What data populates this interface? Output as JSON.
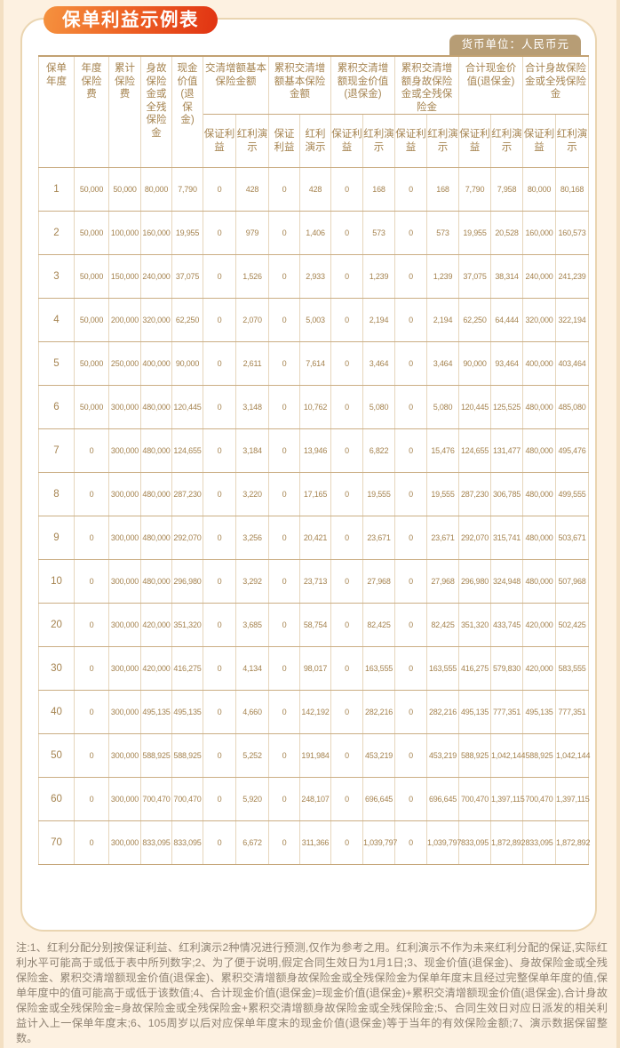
{
  "page": {
    "title": "保单利益示例表",
    "currency_note": "货币单位：人民币元"
  },
  "colors": {
    "page_background": "#fdf1e1",
    "panel_border": "#ead5b1",
    "title_badge_gradient_start": "#f5923f",
    "title_badge_gradient_end": "#e13312",
    "currency_badge_background": "#b79d75",
    "table_text": "#a5834f",
    "table_line_horizontal": "#c9ab80",
    "table_line_vertical": "#e6d6bc",
    "footnote_text": "#8f8374"
  },
  "table": {
    "single_columns": [
      "保单年度",
      "年度保险费",
      "累计保险费",
      "身故保险金或全残保险金",
      "现金价值(退保金)"
    ],
    "group_columns": [
      "交清增额基本保险金额",
      "累积交清增额基本保险金额",
      "累积交清增额现金价值(退保金)",
      "累积交清增额身故保险金或全残保险金",
      "合计现金价值(退保金)",
      "合计身故保险金或全残保险金"
    ],
    "sub_columns": {
      "guaranteed": "保证利益",
      "dividend": "红利演示"
    },
    "rows": [
      [
        "1",
        "50,000",
        "50,000",
        "80,000",
        "7,790",
        "0",
        "428",
        "0",
        "428",
        "0",
        "168",
        "0",
        "168",
        "7,790",
        "7,958",
        "80,000",
        "80,168"
      ],
      [
        "2",
        "50,000",
        "100,000",
        "160,000",
        "19,955",
        "0",
        "979",
        "0",
        "1,406",
        "0",
        "573",
        "0",
        "573",
        "19,955",
        "20,528",
        "160,000",
        "160,573"
      ],
      [
        "3",
        "50,000",
        "150,000",
        "240,000",
        "37,075",
        "0",
        "1,526",
        "0",
        "2,933",
        "0",
        "1,239",
        "0",
        "1,239",
        "37,075",
        "38,314",
        "240,000",
        "241,239"
      ],
      [
        "4",
        "50,000",
        "200,000",
        "320,000",
        "62,250",
        "0",
        "2,070",
        "0",
        "5,003",
        "0",
        "2,194",
        "0",
        "2,194",
        "62,250",
        "64,444",
        "320,000",
        "322,194"
      ],
      [
        "5",
        "50,000",
        "250,000",
        "400,000",
        "90,000",
        "0",
        "2,611",
        "0",
        "7,614",
        "0",
        "3,464",
        "0",
        "3,464",
        "90,000",
        "93,464",
        "400,000",
        "403,464"
      ],
      [
        "6",
        "50,000",
        "300,000",
        "480,000",
        "120,445",
        "0",
        "3,148",
        "0",
        "10,762",
        "0",
        "5,080",
        "0",
        "5,080",
        "120,445",
        "125,525",
        "480,000",
        "485,080"
      ],
      [
        "7",
        "0",
        "300,000",
        "480,000",
        "124,655",
        "0",
        "3,184",
        "0",
        "13,946",
        "0",
        "6,822",
        "0",
        "15,476",
        "124,655",
        "131,477",
        "480,000",
        "495,476"
      ],
      [
        "8",
        "0",
        "300,000",
        "480,000",
        "287,230",
        "0",
        "3,220",
        "0",
        "17,165",
        "0",
        "19,555",
        "0",
        "19,555",
        "287,230",
        "306,785",
        "480,000",
        "499,555"
      ],
      [
        "9",
        "0",
        "300,000",
        "480,000",
        "292,070",
        "0",
        "3,256",
        "0",
        "20,421",
        "0",
        "23,671",
        "0",
        "23,671",
        "292,070",
        "315,741",
        "480,000",
        "503,671"
      ],
      [
        "10",
        "0",
        "300,000",
        "480,000",
        "296,980",
        "0",
        "3,292",
        "0",
        "23,713",
        "0",
        "27,968",
        "0",
        "27,968",
        "296,980",
        "324,948",
        "480,000",
        "507,968"
      ],
      [
        "20",
        "0",
        "300,000",
        "420,000",
        "351,320",
        "0",
        "3,685",
        "0",
        "58,754",
        "0",
        "82,425",
        "0",
        "82,425",
        "351,320",
        "433,745",
        "420,000",
        "502,425"
      ],
      [
        "30",
        "0",
        "300,000",
        "420,000",
        "416,275",
        "0",
        "4,134",
        "0",
        "98,017",
        "0",
        "163,555",
        "0",
        "163,555",
        "416,275",
        "579,830",
        "420,000",
        "583,555"
      ],
      [
        "40",
        "0",
        "300,000",
        "495,135",
        "495,135",
        "0",
        "4,660",
        "0",
        "142,192",
        "0",
        "282,216",
        "0",
        "282,216",
        "495,135",
        "777,351",
        "495,135",
        "777,351"
      ],
      [
        "50",
        "0",
        "300,000",
        "588,925",
        "588,925",
        "0",
        "5,252",
        "0",
        "191,984",
        "0",
        "453,219",
        "0",
        "453,219",
        "588,925",
        "1,042,144",
        "588,925",
        "1,042,144"
      ],
      [
        "60",
        "0",
        "300,000",
        "700,470",
        "700,470",
        "0",
        "5,920",
        "0",
        "248,107",
        "0",
        "696,645",
        "0",
        "696,645",
        "700,470",
        "1,397,115",
        "700,470",
        "1,397,115"
      ],
      [
        "70",
        "0",
        "300,000",
        "833,095",
        "833,095",
        "0",
        "6,672",
        "0",
        "311,366",
        "0",
        "1,039,797",
        "0",
        "1,039,797",
        "833,095",
        "1,872,892",
        "833,095",
        "1,872,892"
      ]
    ]
  },
  "footnote": "注:1、红利分配分别按保证利益、红利演示2种情况进行预测,仅作为参考之用。红利演示不作为未来红利分配的保证,实际红利水平可能高于或低于表中所列数字;2、为了便于说明,假定合同生效日为1月1日;3、现金价值(退保金)、身故保险金或全残保险金、累积交清增额现金价值(退保金)、累积交清增额身故保险金或全残保险金为保单年度末且经过完整保单年度的值,保单年度中的值可能高于或低于该数值;4、合计现金价值(退保金)=现金价值(退保金)+累积交清增额现金价值(退保金),合计身故保险金或全残保险金=身故保险金或全残保险金+累积交清增额身故保险金或全残保险金;5、合同生效日对应日派发的相关利益计入上一保单年度末;6、105周岁以后对应保单年度末的现金价值(退保金)等于当年的有效保险金额;7、演示数据保留整数。"
}
